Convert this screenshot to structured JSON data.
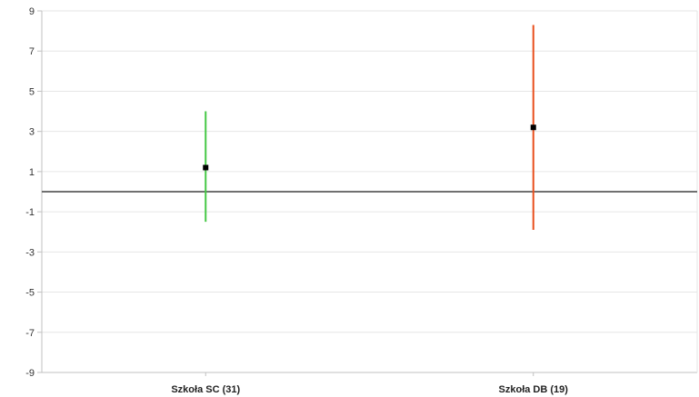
{
  "chart_data": {
    "type": "errorbar",
    "title": "",
    "xlabel": "",
    "ylabel": "",
    "ylim": [
      -9,
      9
    ],
    "yticks": [
      9,
      7,
      5,
      3,
      1,
      -1,
      -3,
      -5,
      -7,
      -9
    ],
    "grid": true,
    "reference_line": 0,
    "categories": [
      "Szkoła SC (31)",
      "Szkoła DB (19)"
    ],
    "points": [
      {
        "category": "Szkoła SC (31)",
        "value": 1.2,
        "low": -1.5,
        "high": 4.0,
        "color": "#46c846"
      },
      {
        "category": "Szkoła DB (19)",
        "value": 3.2,
        "low": -1.9,
        "high": 8.3,
        "color": "#e8501e"
      }
    ]
  },
  "colors": {
    "grid": "#e6e6e6",
    "axis": "#c0c0c0",
    "reference_line": "#707070",
    "marker": "#000000"
  }
}
